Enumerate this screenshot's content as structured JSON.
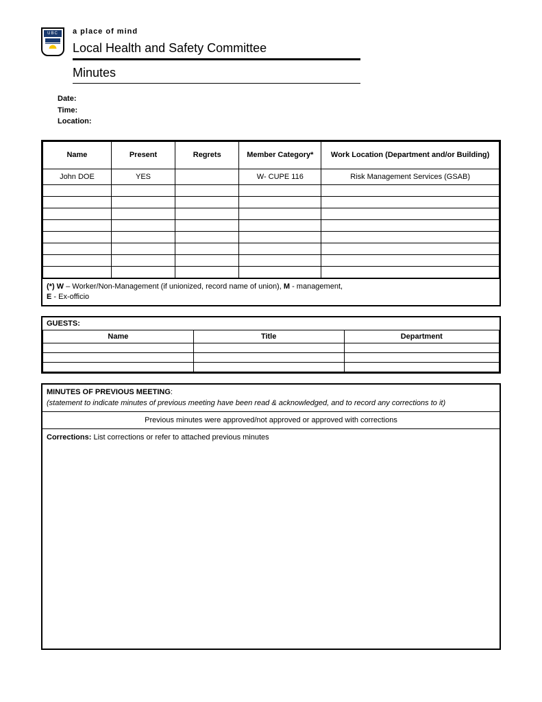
{
  "header": {
    "logo_text": "UBC",
    "tagline": "a place of mind",
    "title": "Local Health and Safety Committee",
    "subtitle": "Minutes"
  },
  "meta": {
    "date_label": "Date:",
    "time_label": "Time:",
    "location_label": "Location:"
  },
  "attendance": {
    "columns": {
      "name": "Name",
      "present": "Present",
      "regrets": "Regrets",
      "member_category": "Member Category*",
      "work_location": "Work Location (Department and/or Building)"
    },
    "rows": [
      {
        "name": "John DOE",
        "present": "YES",
        "regrets": "",
        "category": "W- CUPE 116",
        "location": "Risk Management Services (GSAB)"
      },
      {
        "name": "",
        "present": "",
        "regrets": "",
        "category": "",
        "location": ""
      },
      {
        "name": "",
        "present": "",
        "regrets": "",
        "category": "",
        "location": ""
      },
      {
        "name": "",
        "present": "",
        "regrets": "",
        "category": "",
        "location": ""
      },
      {
        "name": "",
        "present": "",
        "regrets": "",
        "category": "",
        "location": ""
      },
      {
        "name": "",
        "present": "",
        "regrets": "",
        "category": "",
        "location": ""
      },
      {
        "name": "",
        "present": "",
        "regrets": "",
        "category": "",
        "location": ""
      },
      {
        "name": "",
        "present": "",
        "regrets": "",
        "category": "",
        "location": ""
      },
      {
        "name": "",
        "present": "",
        "regrets": "",
        "category": "",
        "location": ""
      }
    ],
    "footnote_html": "(*) W – Worker/Non-Management (if unionized, record name of union), M - management, E - Ex-officio",
    "footnote_prefix": "(*) W",
    "footnote_mid1": " – Worker/Non-Management (if unionized, record name of union), ",
    "footnote_m": "M",
    "footnote_mid2": " - management, ",
    "footnote_e": "E",
    "footnote_end": " - Ex-officio"
  },
  "guests": {
    "label": "GUESTS:",
    "columns": {
      "name": "Name",
      "title": "Title",
      "department": "Department"
    },
    "rows": [
      {
        "name": "",
        "title": "",
        "department": ""
      },
      {
        "name": "",
        "title": "",
        "department": ""
      },
      {
        "name": "",
        "title": "",
        "department": ""
      }
    ]
  },
  "previous": {
    "heading": "MINUTES OF PREVIOUS MEETING",
    "heading_colon": ":",
    "statement": "(statement to indicate minutes of previous meeting have been read & acknowledged, and to record any corrections to it)",
    "approved_line": "Previous minutes were approved/not approved or approved with corrections",
    "corrections_label": "Corrections:",
    "corrections_text": "  List corrections or refer to attached previous minutes"
  },
  "style": {
    "border_color": "#000000",
    "background": "#ffffff",
    "font_family": "Verdana",
    "title_fontsize": 18,
    "body_fontsize": 11
  }
}
